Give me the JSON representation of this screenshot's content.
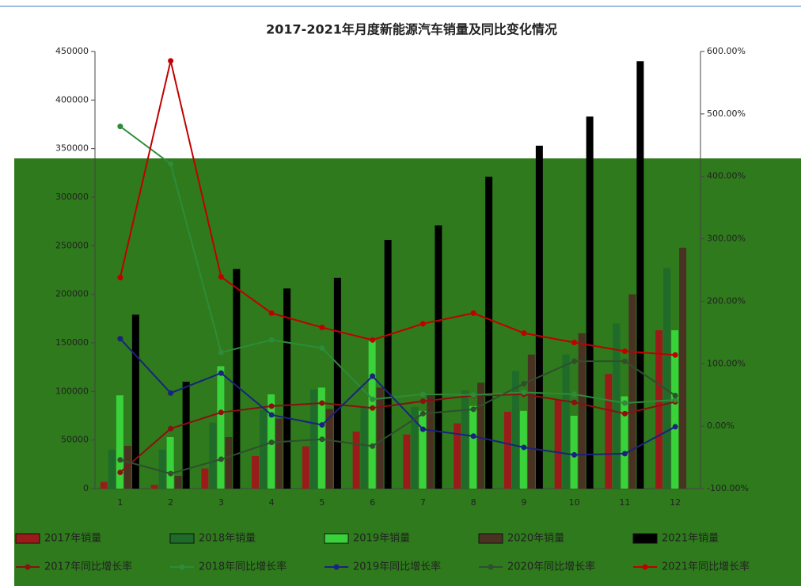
{
  "chart_data": {
    "type": "bar",
    "title": "2017-2021年月度新能源汽车销量及同比变化情况",
    "categories": [
      "1",
      "2",
      "3",
      "4",
      "5",
      "6",
      "7",
      "8",
      "9",
      "10",
      "11",
      "12"
    ],
    "ylim": [
      0,
      450000
    ],
    "yticks": [
      0,
      50000,
      100000,
      150000,
      200000,
      250000,
      300000,
      350000,
      400000,
      450000
    ],
    "y2lim": [
      -100,
      600
    ],
    "y2ticks": [
      {
        "value": -100,
        "label": "-100.00%"
      },
      {
        "value": 0,
        "label": "0.00%"
      },
      {
        "value": 100,
        "label": "100.00%"
      },
      {
        "value": 200,
        "label": "200.00%"
      },
      {
        "value": 300,
        "label": "300.00%"
      },
      {
        "value": 400,
        "label": "400.00%"
      },
      {
        "value": 500,
        "label": "500.00%"
      },
      {
        "value": 600,
        "label": "600.00%"
      }
    ],
    "series": [
      {
        "name": "2017年销量",
        "color": "#9b1b1b",
        "values": [
          6800,
          3900,
          20700,
          33400,
          43500,
          58600,
          55700,
          67200,
          79000,
          90900,
          118000,
          163000
        ]
      },
      {
        "name": "2018年销量",
        "color": "#1f6b2a",
        "values": [
          40000,
          40000,
          68000,
          81000,
          102000,
          84000,
          84000,
          101000,
          121000,
          138000,
          170000,
          227000
        ]
      },
      {
        "name": "2019年销量",
        "color": "#3ad23a",
        "values": [
          96000,
          53000,
          126000,
          97000,
          104000,
          152000,
          80000,
          85000,
          80000,
          75000,
          95000,
          163000
        ]
      },
      {
        "name": "2020年销量",
        "color": "#4a3222",
        "values": [
          44000,
          13000,
          53000,
          72000,
          82000,
          104000,
          98000,
          109000,
          138000,
          160000,
          200000,
          248000
        ]
      },
      {
        "name": "2021年销量",
        "color": "#000000",
        "values": [
          179000,
          110000,
          226000,
          206000,
          217000,
          256000,
          271000,
          321000,
          353000,
          383000,
          440000,
          null
        ]
      },
      {
        "name": "2017年同比增长率",
        "color": "#8b1010",
        "axis": "y2",
        "values": [
          -74,
          -4,
          22,
          32,
          37,
          29,
          40,
          49,
          51,
          38,
          20,
          39
        ]
      },
      {
        "name": "2018年同比增长率",
        "color": "#2e8b3a",
        "axis": "y2",
        "values": [
          480,
          420,
          118,
          138,
          125,
          43,
          51,
          50,
          54,
          51,
          37,
          42
        ]
      },
      {
        "name": "2019年同比增长率",
        "color": "#1a237e",
        "axis": "y2",
        "values": [
          140,
          53,
          85,
          18,
          2,
          80,
          -5,
          -16,
          -34,
          -46,
          -44,
          -1
        ]
      },
      {
        "name": "2020年同比增长率",
        "color": "#2f4f2f",
        "axis": "y2",
        "values": [
          -54,
          -76,
          -53,
          -26,
          -21,
          -32,
          20,
          27,
          68,
          104,
          104,
          49
        ]
      },
      {
        "name": "2021年同比增长率",
        "color": "#c00000",
        "axis": "y2",
        "values": [
          238,
          585,
          239,
          181,
          158,
          138,
          164,
          181,
          149,
          134,
          120,
          114
        ]
      }
    ]
  }
}
